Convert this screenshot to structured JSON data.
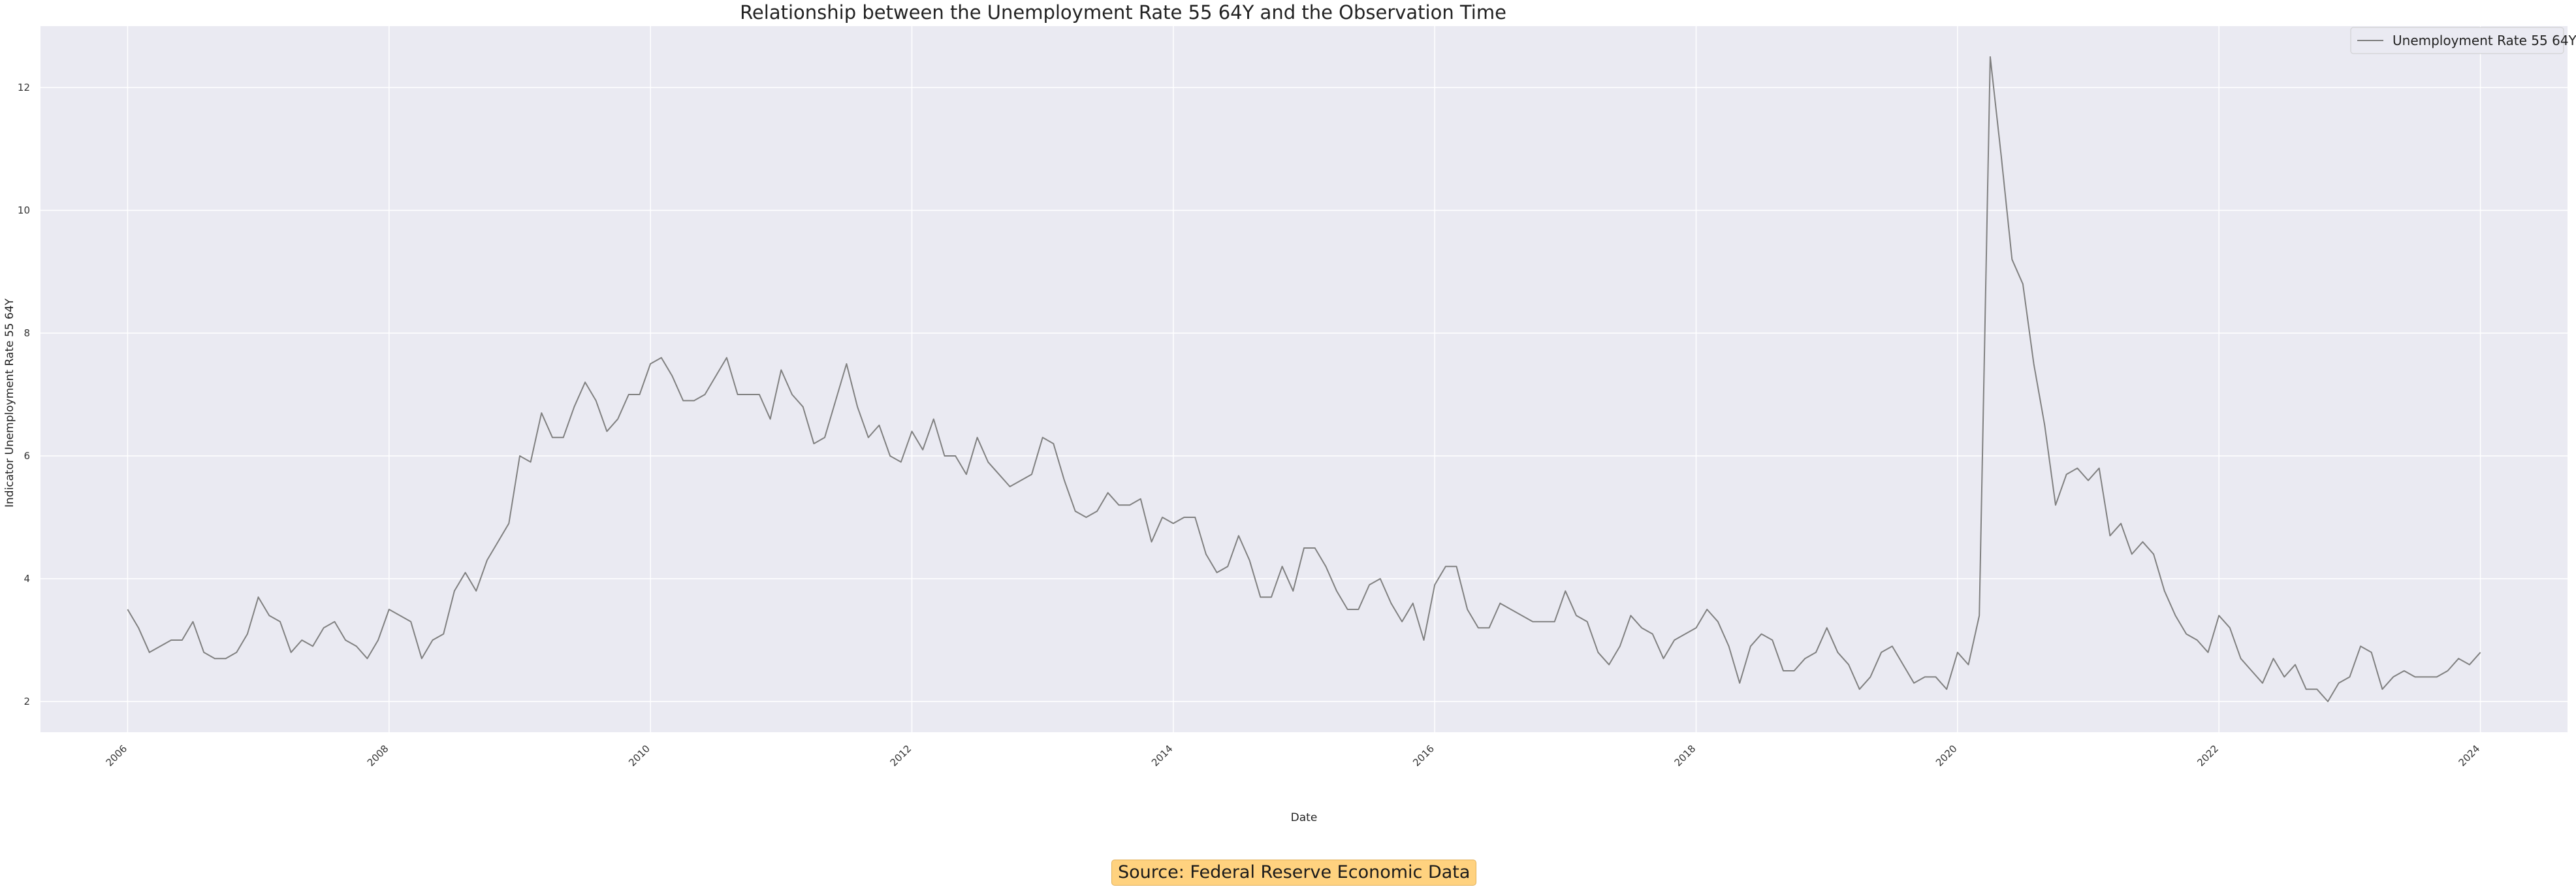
{
  "chart_data": {
    "type": "line",
    "title": "Relationship between the Unemployment Rate 55 64Y and the Observation Time",
    "xlabel": "Date",
    "ylabel": "Indicator Unemployment Rate 55 64Y",
    "xlim": [
      "2005-05",
      "2024-09"
    ],
    "ylim": [
      1.5,
      13.0
    ],
    "x_ticks": [
      "2006",
      "2008",
      "2010",
      "2012",
      "2014",
      "2016",
      "2018",
      "2020",
      "2022",
      "2024"
    ],
    "y_ticks": [
      "2",
      "4",
      "6",
      "8",
      "10",
      "12"
    ],
    "grid": true,
    "legend": "top-right",
    "colors": {
      "background": "#eaeaf2",
      "grid": "#ffffff",
      "line": "#808080"
    },
    "series": [
      {
        "name": "Unemployment Rate 55 64Y",
        "x": [
          "2006-01",
          "2006-02",
          "2006-03",
          "2006-04",
          "2006-05",
          "2006-06",
          "2006-07",
          "2006-08",
          "2006-09",
          "2006-10",
          "2006-11",
          "2006-12",
          "2007-01",
          "2007-02",
          "2007-03",
          "2007-04",
          "2007-05",
          "2007-06",
          "2007-07",
          "2007-08",
          "2007-09",
          "2007-10",
          "2007-11",
          "2007-12",
          "2008-01",
          "2008-02",
          "2008-03",
          "2008-04",
          "2008-05",
          "2008-06",
          "2008-07",
          "2008-08",
          "2008-09",
          "2008-10",
          "2008-11",
          "2008-12",
          "2009-01",
          "2009-02",
          "2009-03",
          "2009-04",
          "2009-05",
          "2009-06",
          "2009-07",
          "2009-08",
          "2009-09",
          "2009-10",
          "2009-11",
          "2009-12",
          "2010-01",
          "2010-02",
          "2010-03",
          "2010-04",
          "2010-05",
          "2010-06",
          "2010-07",
          "2010-08",
          "2010-09",
          "2010-10",
          "2010-11",
          "2010-12",
          "2011-01",
          "2011-02",
          "2011-03",
          "2011-04",
          "2011-05",
          "2011-06",
          "2011-07",
          "2011-08",
          "2011-09",
          "2011-10",
          "2011-11",
          "2011-12",
          "2012-01",
          "2012-02",
          "2012-03",
          "2012-04",
          "2012-05",
          "2012-06",
          "2012-07",
          "2012-08",
          "2012-09",
          "2012-10",
          "2012-11",
          "2012-12",
          "2013-01",
          "2013-02",
          "2013-03",
          "2013-04",
          "2013-05",
          "2013-06",
          "2013-07",
          "2013-08",
          "2013-09",
          "2013-10",
          "2013-11",
          "2013-12",
          "2014-01",
          "2014-02",
          "2014-03",
          "2014-04",
          "2014-05",
          "2014-06",
          "2014-07",
          "2014-08",
          "2014-09",
          "2014-10",
          "2014-11",
          "2014-12",
          "2015-01",
          "2015-02",
          "2015-03",
          "2015-04",
          "2015-05",
          "2015-06",
          "2015-07",
          "2015-08",
          "2015-09",
          "2015-10",
          "2015-11",
          "2015-12",
          "2016-01",
          "2016-02",
          "2016-03",
          "2016-04",
          "2016-05",
          "2016-06",
          "2016-07",
          "2016-08",
          "2016-09",
          "2016-10",
          "2016-11",
          "2016-12",
          "2017-01",
          "2017-02",
          "2017-03",
          "2017-04",
          "2017-05",
          "2017-06",
          "2017-07",
          "2017-08",
          "2017-09",
          "2017-10",
          "2017-11",
          "2017-12",
          "2018-01",
          "2018-02",
          "2018-03",
          "2018-04",
          "2018-05",
          "2018-06",
          "2018-07",
          "2018-08",
          "2018-09",
          "2018-10",
          "2018-11",
          "2018-12",
          "2019-01",
          "2019-02",
          "2019-03",
          "2019-04",
          "2019-05",
          "2019-06",
          "2019-07",
          "2019-08",
          "2019-09",
          "2019-10",
          "2019-11",
          "2019-12",
          "2020-01",
          "2020-02",
          "2020-03",
          "2020-04",
          "2020-05",
          "2020-06",
          "2020-07",
          "2020-08",
          "2020-09",
          "2020-10",
          "2020-11",
          "2020-12",
          "2021-01",
          "2021-02",
          "2021-03",
          "2021-04",
          "2021-05",
          "2021-06",
          "2021-07",
          "2021-08",
          "2021-09",
          "2021-10",
          "2021-11",
          "2021-12",
          "2022-01",
          "2022-02",
          "2022-03",
          "2022-04",
          "2022-05",
          "2022-06",
          "2022-07",
          "2022-08",
          "2022-09",
          "2022-10",
          "2022-11",
          "2022-12",
          "2023-01",
          "2023-02",
          "2023-03",
          "2023-04",
          "2023-05",
          "2023-06",
          "2023-07",
          "2023-08",
          "2023-09",
          "2023-10",
          "2023-11",
          "2023-12",
          "2024-01"
        ],
        "values": [
          3.5,
          3.2,
          2.8,
          2.9,
          3.0,
          3.0,
          3.3,
          2.8,
          2.7,
          2.7,
          2.8,
          3.1,
          3.7,
          3.4,
          3.3,
          2.8,
          3.0,
          2.9,
          3.2,
          3.3,
          3.0,
          2.9,
          2.7,
          3.0,
          3.5,
          3.4,
          3.3,
          2.7,
          3.0,
          3.1,
          3.8,
          4.1,
          3.8,
          4.3,
          4.6,
          4.9,
          6.0,
          5.9,
          6.7,
          6.3,
          6.3,
          6.8,
          7.2,
          6.9,
          6.4,
          6.6,
          7.0,
          7.0,
          7.5,
          7.6,
          7.3,
          6.9,
          6.9,
          7.0,
          7.3,
          7.6,
          7.0,
          7.0,
          7.0,
          6.6,
          7.4,
          7.0,
          6.8,
          6.2,
          6.3,
          6.9,
          7.5,
          6.8,
          6.3,
          6.5,
          6.0,
          5.9,
          6.4,
          6.1,
          6.6,
          6.0,
          6.0,
          5.7,
          6.3,
          5.9,
          5.7,
          5.5,
          5.6,
          5.7,
          6.3,
          6.2,
          5.6,
          5.1,
          5.0,
          5.1,
          5.4,
          5.2,
          5.2,
          5.3,
          4.6,
          5.0,
          4.9,
          5.0,
          5.0,
          4.4,
          4.1,
          4.2,
          4.7,
          4.3,
          3.7,
          3.7,
          4.2,
          3.8,
          4.5,
          4.5,
          4.2,
          3.8,
          3.5,
          3.5,
          3.9,
          4.0,
          3.6,
          3.3,
          3.6,
          3.0,
          3.9,
          4.2,
          4.2,
          3.5,
          3.2,
          3.2,
          3.6,
          3.5,
          3.4,
          3.3,
          3.3,
          3.3,
          3.8,
          3.4,
          3.3,
          2.8,
          2.6,
          2.9,
          3.4,
          3.2,
          3.1,
          2.7,
          3.0,
          3.1,
          3.2,
          3.5,
          3.3,
          2.9,
          2.3,
          2.9,
          3.1,
          3.0,
          2.5,
          2.5,
          2.7,
          2.8,
          3.2,
          2.8,
          2.6,
          2.2,
          2.4,
          2.8,
          2.9,
          2.6,
          2.3,
          2.4,
          2.4,
          2.2,
          2.8,
          2.6,
          3.4,
          12.5,
          10.9,
          9.2,
          8.8,
          7.5,
          6.5,
          5.2,
          5.7,
          5.8,
          5.6,
          5.8,
          4.7,
          4.9,
          4.4,
          4.6,
          4.4,
          3.8,
          3.4,
          3.1,
          3.0,
          2.8,
          3.4,
          3.2,
          2.7,
          2.5,
          2.3,
          2.7,
          2.4,
          2.6,
          2.2,
          2.2,
          2.0,
          2.3,
          2.4,
          2.9,
          2.8,
          2.2,
          2.4,
          2.5,
          2.4,
          2.4,
          2.4,
          2.5,
          2.7,
          2.6,
          2.8
        ]
      }
    ]
  },
  "source_note": "Source: Federal Reserve Economic Data"
}
